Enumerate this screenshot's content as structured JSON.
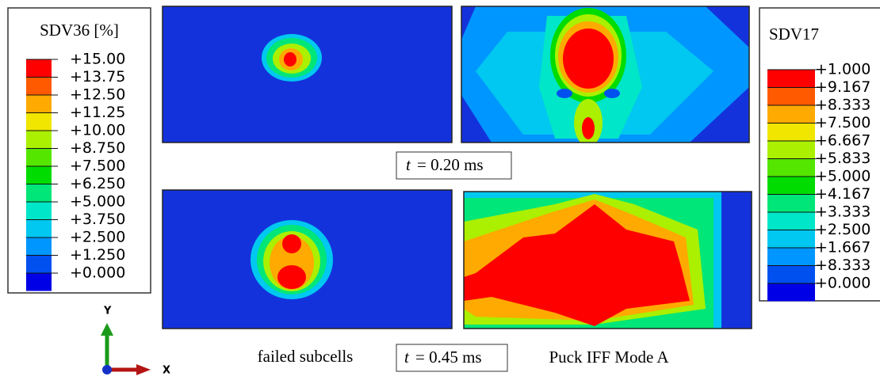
{
  "legend_left": {
    "title": "SDV36 [%]",
    "labels": [
      "+15.00",
      "+13.75",
      "+12.50",
      "+11.25",
      "+10.00",
      "+8.750",
      "+7.500",
      "+6.250",
      "+5.000",
      "+3.750",
      "+2.500",
      "+1.250",
      "+0.000"
    ]
  },
  "legend_right": {
    "title": "SDV17",
    "labels": [
      "+1.000",
      "+9.167",
      "+8.333",
      "+7.500",
      "+6.667",
      "+5.833",
      "+5.000",
      "+4.167",
      "+3.333",
      "+2.500",
      "+1.667",
      "+8.333",
      "+0.000"
    ]
  },
  "colors": [
    "#ff0000",
    "#ff5a00",
    "#ffaa00",
    "#f0e600",
    "#aaf000",
    "#55e600",
    "#00dc00",
    "#00e678",
    "#00e6c8",
    "#00c8f0",
    "#0096ff",
    "#0050f0",
    "#0000e6"
  ],
  "time_labels": [
    {
      "var": "t",
      "text": "= 0.20 ms"
    },
    {
      "var": "t",
      "text": "= 0.45 ms"
    }
  ],
  "captions": {
    "left": "failed subcells",
    "right": "Puck IFF Mode A"
  },
  "axes": {
    "y": "Y",
    "x": "X"
  }
}
